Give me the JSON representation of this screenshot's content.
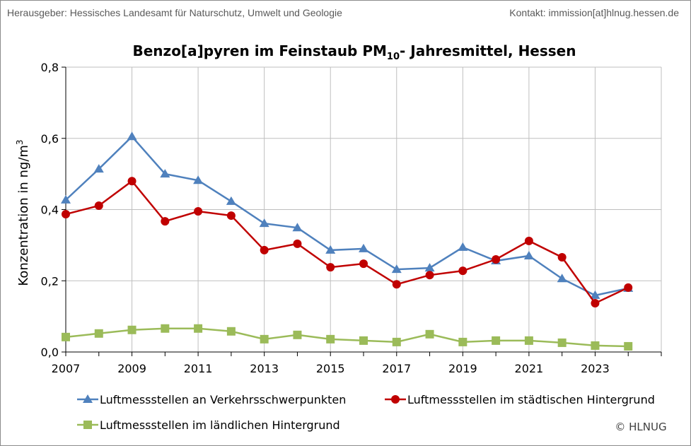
{
  "header": {
    "publisher": "Herausgeber: Hessisches Landesamt für Naturschutz, Umwelt und Geologie",
    "contact": "Kontakt: immission[at]hlnug.hessen.de"
  },
  "copyright": "© HLNUG",
  "chart_data": {
    "type": "line",
    "title": "Benzo[a]pyren im Feinstaub PM",
    "title_sub": "10",
    "title_rest": "- Jahresmittel, Hessen",
    "ylabel": "Konzentration in ng/m",
    "ylabel_sup": "3",
    "xlim": [
      2007,
      2025
    ],
    "ylim": [
      0,
      0.8
    ],
    "xticks": [
      2007,
      2009,
      2011,
      2013,
      2015,
      2017,
      2019,
      2021,
      2023
    ],
    "yticks": [
      "0,0",
      "0,2",
      "0,4",
      "0,6",
      "0,8"
    ],
    "grid": true,
    "legend_placement": "bottom",
    "x": [
      2007,
      2008,
      2009,
      2010,
      2011,
      2012,
      2013,
      2014,
      2015,
      2016,
      2017,
      2018,
      2019,
      2020,
      2021,
      2022,
      2023,
      2024
    ],
    "series": [
      {
        "name": "Luftmessstellen an Verkehrsschwerpunkten",
        "color": "#4f81bd",
        "marker": "triangle",
        "values": [
          0.427,
          0.514,
          0.605,
          0.5,
          0.482,
          0.423,
          0.361,
          0.349,
          0.286,
          0.29,
          0.232,
          0.236,
          0.294,
          0.256,
          0.27,
          0.206,
          0.159,
          0.179
        ]
      },
      {
        "name": "Luftmessstellen im städtischen Hintergrund",
        "color": "#c00000",
        "marker": "circle",
        "values": [
          0.387,
          0.411,
          0.48,
          0.367,
          0.395,
          0.383,
          0.286,
          0.304,
          0.238,
          0.248,
          0.19,
          0.216,
          0.228,
          0.26,
          0.312,
          0.266,
          0.137,
          0.181
        ]
      },
      {
        "name": "Luftmessstellen im ländlichen Hintergrund",
        "color": "#9bbb59",
        "marker": "square",
        "values": [
          0.042,
          0.052,
          0.062,
          0.066,
          0.066,
          0.058,
          0.036,
          0.048,
          0.036,
          0.032,
          0.028,
          0.05,
          0.028,
          0.032,
          0.032,
          0.026,
          0.018,
          0.016
        ]
      }
    ]
  }
}
